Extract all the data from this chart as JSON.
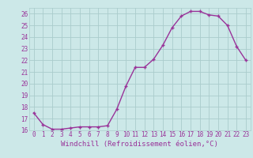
{
  "x": [
    0,
    1,
    2,
    3,
    4,
    5,
    6,
    7,
    8,
    9,
    10,
    11,
    12,
    13,
    14,
    15,
    16,
    17,
    18,
    19,
    20,
    21,
    22,
    23
  ],
  "y": [
    17.5,
    16.5,
    16.1,
    16.1,
    16.2,
    16.3,
    16.3,
    16.3,
    16.4,
    17.8,
    19.8,
    21.4,
    21.4,
    22.1,
    23.3,
    24.8,
    25.8,
    26.2,
    26.2,
    25.9,
    25.8,
    25.0,
    23.2,
    22.0
  ],
  "line_color": "#993399",
  "marker": "+",
  "marker_size": 3,
  "bg_color": "#cce8e8",
  "grid_color": "#aacccc",
  "xlabel": "Windchill (Refroidissement éolien,°C)",
  "xlabel_color": "#993399",
  "tick_color": "#993399",
  "ylim": [
    16,
    26.5
  ],
  "xlim": [
    -0.5,
    23.5
  ],
  "yticks": [
    16,
    17,
    18,
    19,
    20,
    21,
    22,
    23,
    24,
    25,
    26
  ],
  "xticks": [
    0,
    1,
    2,
    3,
    4,
    5,
    6,
    7,
    8,
    9,
    10,
    11,
    12,
    13,
    14,
    15,
    16,
    17,
    18,
    19,
    20,
    21,
    22,
    23
  ],
  "tick_fontsize": 5.5,
  "xlabel_fontsize": 6.5,
  "line_width": 1.0,
  "marker_edge_width": 1.0
}
